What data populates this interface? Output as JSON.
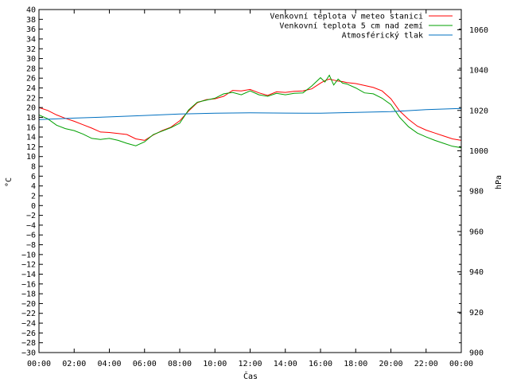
{
  "chart_data": {
    "type": "line",
    "xlabel": "Čas",
    "ylabel_left": "°C",
    "ylabel_right": "hPa",
    "x_ticks": [
      "00:00",
      "02:00",
      "04:00",
      "06:00",
      "08:00",
      "10:00",
      "12:00",
      "14:00",
      "16:00",
      "18:00",
      "20:00",
      "22:00",
      "00:00"
    ],
    "x_range_hours": [
      0,
      24
    ],
    "y_left_range": [
      -30,
      40
    ],
    "y_left_ticks": [
      -30,
      -28,
      -26,
      -24,
      -22,
      -20,
      -18,
      -16,
      -14,
      -12,
      -10,
      -8,
      -6,
      -4,
      -2,
      0,
      2,
      4,
      6,
      8,
      10,
      12,
      14,
      16,
      18,
      20,
      22,
      24,
      26,
      28,
      30,
      32,
      34,
      36,
      38,
      40
    ],
    "y_right_range": [
      900,
      1070
    ],
    "y_right_ticks": [
      900,
      920,
      940,
      960,
      980,
      1000,
      1020,
      1040,
      1060
    ],
    "grid": false,
    "legend_position": "top-right",
    "series": [
      {
        "name": "Venkovní teplota v meteo stanici",
        "axis": "left",
        "color": "#ff0000",
        "x": [
          0,
          0.5,
          1,
          1.5,
          2,
          2.5,
          3,
          3.5,
          4,
          4.5,
          5,
          5.5,
          6,
          6.5,
          7,
          7.5,
          8,
          8.5,
          9,
          9.5,
          10,
          10.5,
          11,
          11.5,
          12,
          12.5,
          13,
          13.5,
          14,
          14.5,
          15,
          15.5,
          16,
          16.25,
          16.5,
          16.75,
          17,
          17.25,
          17.5,
          18,
          18.5,
          19,
          19.5,
          20,
          20.5,
          21,
          21.5,
          22,
          22.5,
          23,
          23.5,
          24
        ],
        "y": [
          20.0,
          19.4,
          18.5,
          17.8,
          17.2,
          16.5,
          15.8,
          15.0,
          14.9,
          14.7,
          14.5,
          13.6,
          13.3,
          14.4,
          15.3,
          16.0,
          17.3,
          19.3,
          21.0,
          21.6,
          21.8,
          22.3,
          23.5,
          23.4,
          23.7,
          23.0,
          22.5,
          23.2,
          23.1,
          23.3,
          23.4,
          23.8,
          25.0,
          25.5,
          25.8,
          25.6,
          25.4,
          25.3,
          25.1,
          24.9,
          24.5,
          24.1,
          23.4,
          21.8,
          19.3,
          17.6,
          16.2,
          15.4,
          14.8,
          14.2,
          13.6,
          13.3
        ]
      },
      {
        "name": "Venkovní teplota 5 cm nad zemí",
        "axis": "left",
        "color": "#00a000",
        "x": [
          0,
          0.5,
          1,
          1.5,
          2,
          2.5,
          3,
          3.5,
          4,
          4.5,
          5,
          5.5,
          6,
          6.5,
          7,
          7.5,
          8,
          8.5,
          9,
          9.5,
          10,
          10.5,
          11,
          11.5,
          12,
          12.5,
          13,
          13.5,
          14,
          14.5,
          15,
          15.5,
          16,
          16.25,
          16.5,
          16.75,
          17,
          17.25,
          17.5,
          18,
          18.5,
          19,
          19.5,
          20,
          20.5,
          21,
          21.5,
          22,
          22.5,
          23,
          23.5,
          24
        ],
        "y": [
          18.5,
          17.7,
          16.4,
          15.7,
          15.3,
          14.6,
          13.7,
          13.5,
          13.7,
          13.3,
          12.7,
          12.2,
          13.0,
          14.5,
          15.2,
          15.9,
          16.8,
          19.5,
          21.1,
          21.5,
          21.9,
          22.8,
          23.1,
          22.6,
          23.4,
          22.6,
          22.3,
          22.9,
          22.6,
          22.9,
          23.0,
          24.4,
          26.1,
          25.2,
          26.6,
          24.6,
          25.8,
          25.0,
          24.8,
          24.0,
          23.0,
          22.8,
          21.9,
          20.6,
          18.0,
          16.1,
          14.8,
          14.0,
          13.3,
          12.7,
          12.1,
          11.8
        ]
      },
      {
        "name": "Atmosférický tlak",
        "axis": "right",
        "color": "#0070c0",
        "x": [
          0,
          2,
          4,
          6,
          8,
          10,
          12,
          14,
          16,
          18,
          20,
          22,
          24
        ],
        "y": [
          1015.5,
          1016.2,
          1016.8,
          1017.5,
          1018.2,
          1018.6,
          1018.8,
          1018.7,
          1018.6,
          1019.0,
          1019.4,
          1020.4,
          1021.0
        ]
      }
    ]
  }
}
